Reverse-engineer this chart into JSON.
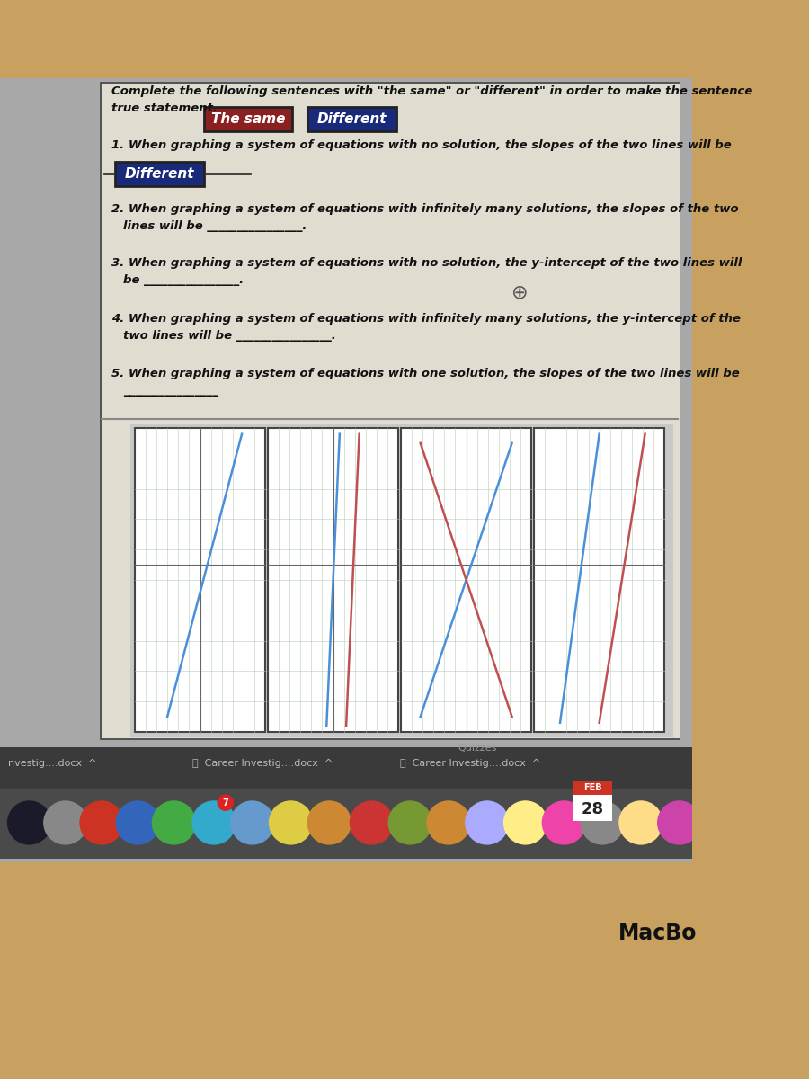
{
  "bg_outer": "#c8a060",
  "bg_screen": "#a8a8a8",
  "bg_taskbar": "#3a3a3a",
  "bg_dock": "#4a4a4a",
  "bg_doc": "#d8d4c8",
  "btn_same_bg": "#8b2020",
  "btn_same_text": "The same",
  "btn_diff_bg": "#1a2a7a",
  "btn_diff_text": "Different",
  "q1_ans_bg": "#1a2a7a",
  "q1_ans_text": "Different",
  "grid_color": "#bbccbb",
  "line1_color": "#4a90d9",
  "line2_color": "#c05050",
  "doc_border": "#555555",
  "text_color": "#111111",
  "macbo_text": "MacBo"
}
